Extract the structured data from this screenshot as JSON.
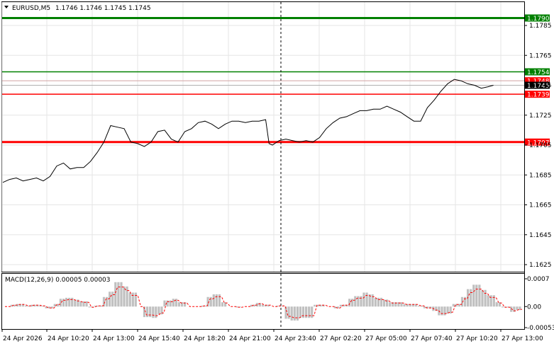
{
  "header": {
    "symbol": "EURUSD,M5",
    "ohlc": "1.1746 1.1746 1.1745 1.1745",
    "menu_arrow": "triangle-down-icon"
  },
  "price_axis": {
    "ticks": [
      "1.1785",
      "1.1765",
      "1.1745",
      "1.1725",
      "1.1705",
      "1.1685",
      "1.1665",
      "1.1645",
      "1.1625"
    ],
    "tick_values": [
      1.1785,
      1.1765,
      1.1745,
      1.1725,
      1.1705,
      1.1685,
      1.1665,
      1.1645,
      1.1625
    ]
  },
  "levels": [
    {
      "label": "1.1790",
      "price": 1.179,
      "color": "#008000",
      "style": "thick"
    },
    {
      "label": "1.1754",
      "price": 1.1754,
      "color": "#008000",
      "style": "normal"
    },
    {
      "label": "1.1748",
      "price": 1.1748,
      "color": "#ff0000",
      "style": "thin"
    },
    {
      "label": "1.1745",
      "price": 1.1745,
      "color": "#000000",
      "style": "current"
    },
    {
      "label": "1.1739",
      "price": 1.1739,
      "color": "#ff0000",
      "style": "normal"
    },
    {
      "label": "1.1707",
      "price": 1.1707,
      "color": "#ff0000",
      "style": "thick"
    }
  ],
  "time_axis": [
    "24 Apr 2026",
    "24 Apr 10:20",
    "24 Apr 13:00",
    "24 Apr 15:40",
    "24 Apr 18:20",
    "24 Apr 21:00",
    "24 Apr 23:40",
    "27 Apr 02:20",
    "27 Apr 05:00",
    "27 Apr 07:40",
    "27 Apr 10:20",
    "27 Apr 13:00"
  ],
  "macd": {
    "label": "MACD(12,26,9) 0.00005 0.00003",
    "ticks": [
      "0.0007",
      "0.00",
      "-0.00053"
    ],
    "tick_values": [
      0.0007,
      0.0,
      -0.00053
    ],
    "histogram_color": "#c0c0c0",
    "signal_color": "#ff0000"
  },
  "chart_data": {
    "type": "line",
    "title": "EURUSD,M5",
    "ylim": [
      1.1617,
      1.1795
    ],
    "series": [
      {
        "name": "EURUSD,M5",
        "x_index": [
          0,
          10,
          20,
          30,
          40,
          50,
          60,
          70,
          80,
          90,
          100,
          110,
          120,
          130,
          140,
          150,
          160,
          170,
          180,
          190,
          200,
          210,
          220,
          230,
          240,
          250,
          260,
          270,
          280,
          290,
          300,
          310,
          320,
          330,
          340,
          350,
          360,
          370,
          380,
          390,
          395,
          400,
          410,
          420,
          430,
          440,
          450,
          460,
          470,
          480,
          490,
          500,
          510,
          520,
          530,
          540,
          550,
          560,
          570,
          580,
          590,
          600,
          610,
          620,
          630,
          640,
          650,
          660,
          670,
          680,
          690,
          700,
          710,
          720,
          728
        ],
        "values": [
          1.168,
          1.1682,
          1.1683,
          1.1681,
          1.1682,
          1.1683,
          1.1681,
          1.1684,
          1.1691,
          1.1693,
          1.1689,
          1.169,
          1.169,
          1.1694,
          1.17,
          1.1707,
          1.1718,
          1.1717,
          1.1716,
          1.1707,
          1.1706,
          1.1704,
          1.1707,
          1.1714,
          1.1715,
          1.1709,
          1.1707,
          1.1714,
          1.1716,
          1.172,
          1.1721,
          1.1719,
          1.1716,
          1.1719,
          1.1721,
          1.1721,
          1.172,
          1.1721,
          1.1721,
          1.1722,
          1.1706,
          1.1705,
          1.1708,
          1.1709,
          1.1708,
          1.1707,
          1.1708,
          1.1707,
          1.171,
          1.1716,
          1.172,
          1.1723,
          1.1724,
          1.1726,
          1.1728,
          1.1728,
          1.1729,
          1.1729,
          1.1731,
          1.1729,
          1.1727,
          1.1724,
          1.1721,
          1.1721,
          1.173,
          1.1735,
          1.1741,
          1.1746,
          1.1749,
          1.1748,
          1.1746,
          1.1745,
          1.1743,
          1.1744,
          1.1745
        ]
      }
    ]
  }
}
